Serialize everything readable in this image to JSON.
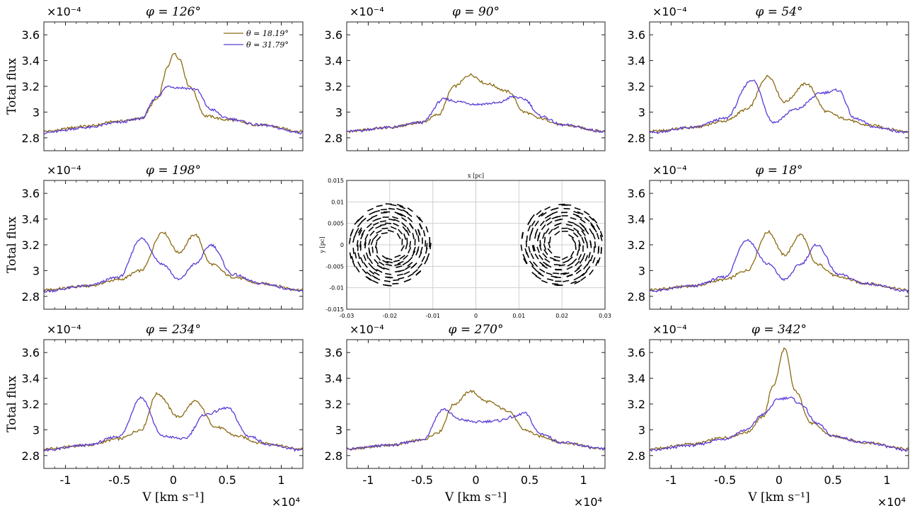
{
  "figure": {
    "series_colors": {
      "theta_18": "#8b6a12",
      "theta_31": "#5a3ad6"
    },
    "ylabel": "Total flux",
    "xlabel": "V [km s⁻¹]",
    "y_exponent_label": "×10⁻⁴",
    "x_exponent_label": "×10⁴",
    "legend": [
      "θ = 18.19°",
      "θ = 31.79°"
    ]
  },
  "chart_data": [
    {
      "type": "line",
      "id": "phi126",
      "title": "φ = 126°",
      "xlim": [
        -1.2,
        1.2
      ],
      "ylim": [
        2.7,
        3.7
      ],
      "xticks": [
        "-1",
        "-0.5",
        "0",
        "0.5",
        "1"
      ],
      "yticks": [
        "2.8",
        "3",
        "3.2",
        "3.4",
        "3.6"
      ],
      "series": [
        {
          "name": "θ = 18.19°",
          "x": [
            -1.2,
            -0.8,
            -0.5,
            -0.3,
            -0.15,
            -0.05,
            0.0,
            0.05,
            0.15,
            0.3,
            0.5,
            0.8,
            1.2
          ],
          "y": [
            2.85,
            2.89,
            2.93,
            2.95,
            3.1,
            3.35,
            3.46,
            3.42,
            3.2,
            2.97,
            2.94,
            2.9,
            2.85
          ]
        },
        {
          "name": "θ = 31.79°",
          "x": [
            -1.2,
            -0.8,
            -0.5,
            -0.3,
            -0.15,
            -0.05,
            0.05,
            0.2,
            0.35,
            0.5,
            0.8,
            1.2
          ],
          "y": [
            2.84,
            2.88,
            2.92,
            2.95,
            3.12,
            3.2,
            3.19,
            3.18,
            3.02,
            2.95,
            2.9,
            2.84
          ]
        }
      ]
    },
    {
      "type": "line",
      "id": "phi90",
      "title": "φ = 90°",
      "xlim": [
        -1.2,
        1.2
      ],
      "ylim": [
        2.7,
        3.7
      ],
      "xticks": [
        "-1",
        "-0.5",
        "0",
        "0.5",
        "1"
      ],
      "yticks": [
        "2.8",
        "3",
        "3.2",
        "3.4",
        "3.6"
      ],
      "series": [
        {
          "name": "θ = 18.19°",
          "x": [
            -1.2,
            -0.8,
            -0.5,
            -0.35,
            -0.2,
            -0.05,
            0.1,
            0.3,
            0.45,
            0.6,
            0.8,
            1.2
          ],
          "y": [
            2.85,
            2.88,
            2.92,
            2.98,
            3.2,
            3.29,
            3.22,
            3.16,
            3.0,
            2.95,
            2.9,
            2.85
          ]
        },
        {
          "name": "θ = 31.79°",
          "x": [
            -1.2,
            -0.8,
            -0.5,
            -0.3,
            -0.15,
            0.0,
            0.2,
            0.35,
            0.45,
            0.6,
            0.8,
            1.2
          ],
          "y": [
            2.85,
            2.88,
            2.92,
            3.1,
            3.08,
            3.06,
            3.07,
            3.12,
            3.1,
            2.97,
            2.9,
            2.85
          ]
        }
      ]
    },
    {
      "type": "line",
      "id": "phi54",
      "title": "φ = 54°",
      "xlim": [
        -1.2,
        1.2
      ],
      "ylim": [
        2.7,
        3.7
      ],
      "xticks": [
        "-1",
        "-0.5",
        "0",
        "0.5",
        "1"
      ],
      "yticks": [
        "2.8",
        "3",
        "3.2",
        "3.4",
        "3.6"
      ],
      "series": [
        {
          "name": "θ = 18.19°",
          "x": [
            -1.2,
            -0.8,
            -0.5,
            -0.3,
            -0.1,
            0.05,
            0.25,
            0.45,
            0.6,
            0.8,
            1.2
          ],
          "y": [
            2.85,
            2.88,
            2.93,
            3.02,
            3.28,
            3.08,
            3.22,
            3.0,
            2.95,
            2.9,
            2.85
          ]
        },
        {
          "name": "θ = 31.79°",
          "x": [
            -1.2,
            -0.8,
            -0.5,
            -0.25,
            -0.05,
            0.15,
            0.4,
            0.55,
            0.7,
            0.9,
            1.2
          ],
          "y": [
            2.84,
            2.88,
            2.95,
            3.25,
            2.92,
            3.02,
            3.15,
            3.17,
            2.95,
            2.88,
            2.84
          ]
        }
      ]
    },
    {
      "type": "line",
      "id": "phi198",
      "title": "φ = 198°",
      "xlim": [
        -1.2,
        1.2
      ],
      "ylim": [
        2.7,
        3.7
      ],
      "xticks": [
        "-1",
        "-0.5",
        "0",
        "0.5",
        "1"
      ],
      "yticks": [
        "2.8",
        "3",
        "3.2",
        "3.4",
        "3.6"
      ],
      "series": [
        {
          "name": "θ = 18.19°",
          "x": [
            -1.2,
            -0.8,
            -0.5,
            -0.3,
            -0.1,
            0.05,
            0.2,
            0.35,
            0.55,
            0.8,
            1.2
          ],
          "y": [
            2.85,
            2.88,
            2.93,
            3.0,
            3.3,
            3.14,
            3.28,
            3.05,
            2.95,
            2.9,
            2.85
          ]
        },
        {
          "name": "θ = 31.79°",
          "x": [
            -1.2,
            -0.8,
            -0.5,
            -0.3,
            -0.1,
            0.05,
            0.2,
            0.35,
            0.55,
            0.8,
            1.2
          ],
          "y": [
            2.84,
            2.88,
            2.95,
            3.25,
            3.05,
            2.93,
            3.05,
            3.2,
            2.97,
            2.9,
            2.84
          ]
        }
      ]
    },
    {
      "type": "quiver",
      "id": "velocity_map",
      "xlabel": "x [pc]",
      "ylabel": "y [pc]",
      "xlim": [
        -0.03,
        0.03
      ],
      "ylim": [
        -0.015,
        0.015
      ],
      "xticks": [
        "-0.03",
        "-0.02",
        "-0.01",
        "0",
        "0.01",
        "0.02",
        "0.03"
      ],
      "yticks": [
        "-0.015",
        "-0.01",
        "-0.005",
        "0",
        "0.005",
        "0.01",
        "0.015"
      ],
      "grid": true,
      "rings": [
        {
          "center": [
            -0.02,
            0.0
          ],
          "inner_radius": 0.003,
          "outer_radius": 0.0095,
          "rotation": "counter-clockwise"
        },
        {
          "center": [
            0.02,
            0.0
          ],
          "inner_radius": 0.003,
          "outer_radius": 0.0095,
          "rotation": "clockwise"
        }
      ]
    },
    {
      "type": "line",
      "id": "phi18",
      "title": "φ = 18°",
      "xlim": [
        -1.2,
        1.2
      ],
      "ylim": [
        2.7,
        3.7
      ],
      "xticks": [
        "-1",
        "-0.5",
        "0",
        "0.5",
        "1"
      ],
      "yticks": [
        "2.8",
        "3",
        "3.2",
        "3.4",
        "3.6"
      ],
      "series": [
        {
          "name": "θ = 18.19°",
          "x": [
            -1.2,
            -0.8,
            -0.5,
            -0.3,
            -0.1,
            0.05,
            0.2,
            0.35,
            0.55,
            0.8,
            1.2
          ],
          "y": [
            2.85,
            2.88,
            2.93,
            3.0,
            3.3,
            3.12,
            3.28,
            3.05,
            2.95,
            2.9,
            2.85
          ]
        },
        {
          "name": "θ = 31.79°",
          "x": [
            -1.2,
            -0.8,
            -0.5,
            -0.3,
            -0.1,
            0.05,
            0.2,
            0.35,
            0.55,
            0.8,
            1.2
          ],
          "y": [
            2.84,
            2.88,
            2.95,
            3.24,
            3.05,
            2.93,
            3.05,
            3.2,
            2.97,
            2.9,
            2.84
          ]
        }
      ]
    },
    {
      "type": "line",
      "id": "phi234",
      "title": "φ = 234°",
      "xlim": [
        -1.2,
        1.2
      ],
      "ylim": [
        2.7,
        3.7
      ],
      "xticks": [
        "-1",
        "-0.5",
        "0",
        "0.5",
        "1"
      ],
      "yticks": [
        "2.8",
        "3",
        "3.2",
        "3.4",
        "3.6"
      ],
      "series": [
        {
          "name": "θ = 18.19°",
          "x": [
            -1.2,
            -0.8,
            -0.5,
            -0.3,
            -0.15,
            0.05,
            0.2,
            0.4,
            0.6,
            0.8,
            1.2
          ],
          "y": [
            2.85,
            2.88,
            2.93,
            3.0,
            3.28,
            3.1,
            3.22,
            3.02,
            2.95,
            2.9,
            2.85
          ]
        },
        {
          "name": "θ = 31.79°",
          "x": [
            -1.2,
            -0.8,
            -0.5,
            -0.3,
            -0.1,
            0.1,
            0.3,
            0.5,
            0.7,
            0.9,
            1.2
          ],
          "y": [
            2.84,
            2.88,
            2.95,
            3.25,
            2.95,
            2.93,
            3.12,
            3.17,
            2.95,
            2.88,
            2.84
          ]
        }
      ]
    },
    {
      "type": "line",
      "id": "phi270",
      "title": "φ = 270°",
      "xlim": [
        -1.2,
        1.2
      ],
      "ylim": [
        2.7,
        3.7
      ],
      "xticks": [
        "-1",
        "-0.5",
        "0",
        "0.5",
        "1"
      ],
      "yticks": [
        "2.8",
        "3",
        "3.2",
        "3.4",
        "3.6"
      ],
      "series": [
        {
          "name": "θ = 18.19°",
          "x": [
            -1.2,
            -0.8,
            -0.5,
            -0.35,
            -0.2,
            -0.05,
            0.1,
            0.3,
            0.45,
            0.6,
            0.8,
            1.2
          ],
          "y": [
            2.85,
            2.88,
            2.92,
            2.98,
            3.2,
            3.3,
            3.22,
            3.15,
            3.0,
            2.95,
            2.9,
            2.85
          ]
        },
        {
          "name": "θ = 31.79°",
          "x": [
            -1.2,
            -0.8,
            -0.5,
            -0.3,
            -0.15,
            0.0,
            0.2,
            0.35,
            0.45,
            0.6,
            0.8,
            1.2
          ],
          "y": [
            2.85,
            2.88,
            2.92,
            3.16,
            3.08,
            3.06,
            3.07,
            3.1,
            3.13,
            2.97,
            2.9,
            2.85
          ]
        }
      ]
    },
    {
      "type": "line",
      "id": "phi342",
      "title": "φ = 342°",
      "xlim": [
        -1.2,
        1.2
      ],
      "ylim": [
        2.7,
        3.7
      ],
      "xticks": [
        "-1",
        "-0.5",
        "0",
        "0.5",
        "1"
      ],
      "yticks": [
        "2.8",
        "3",
        "3.2",
        "3.4",
        "3.6"
      ],
      "series": [
        {
          "name": "θ = 18.19°",
          "x": [
            -1.2,
            -0.8,
            -0.5,
            -0.3,
            -0.15,
            -0.05,
            0.05,
            0.15,
            0.3,
            0.5,
            0.8,
            1.2
          ],
          "y": [
            2.85,
            2.89,
            2.94,
            2.98,
            3.1,
            3.35,
            3.63,
            3.3,
            3.05,
            2.95,
            2.9,
            2.85
          ]
        },
        {
          "name": "θ = 31.79°",
          "x": [
            -1.2,
            -0.8,
            -0.5,
            -0.3,
            -0.15,
            0.0,
            0.1,
            0.2,
            0.35,
            0.5,
            0.8,
            1.2
          ],
          "y": [
            2.84,
            2.88,
            2.93,
            3.0,
            3.12,
            3.24,
            3.25,
            3.2,
            3.05,
            2.95,
            2.9,
            2.84
          ]
        }
      ]
    }
  ]
}
